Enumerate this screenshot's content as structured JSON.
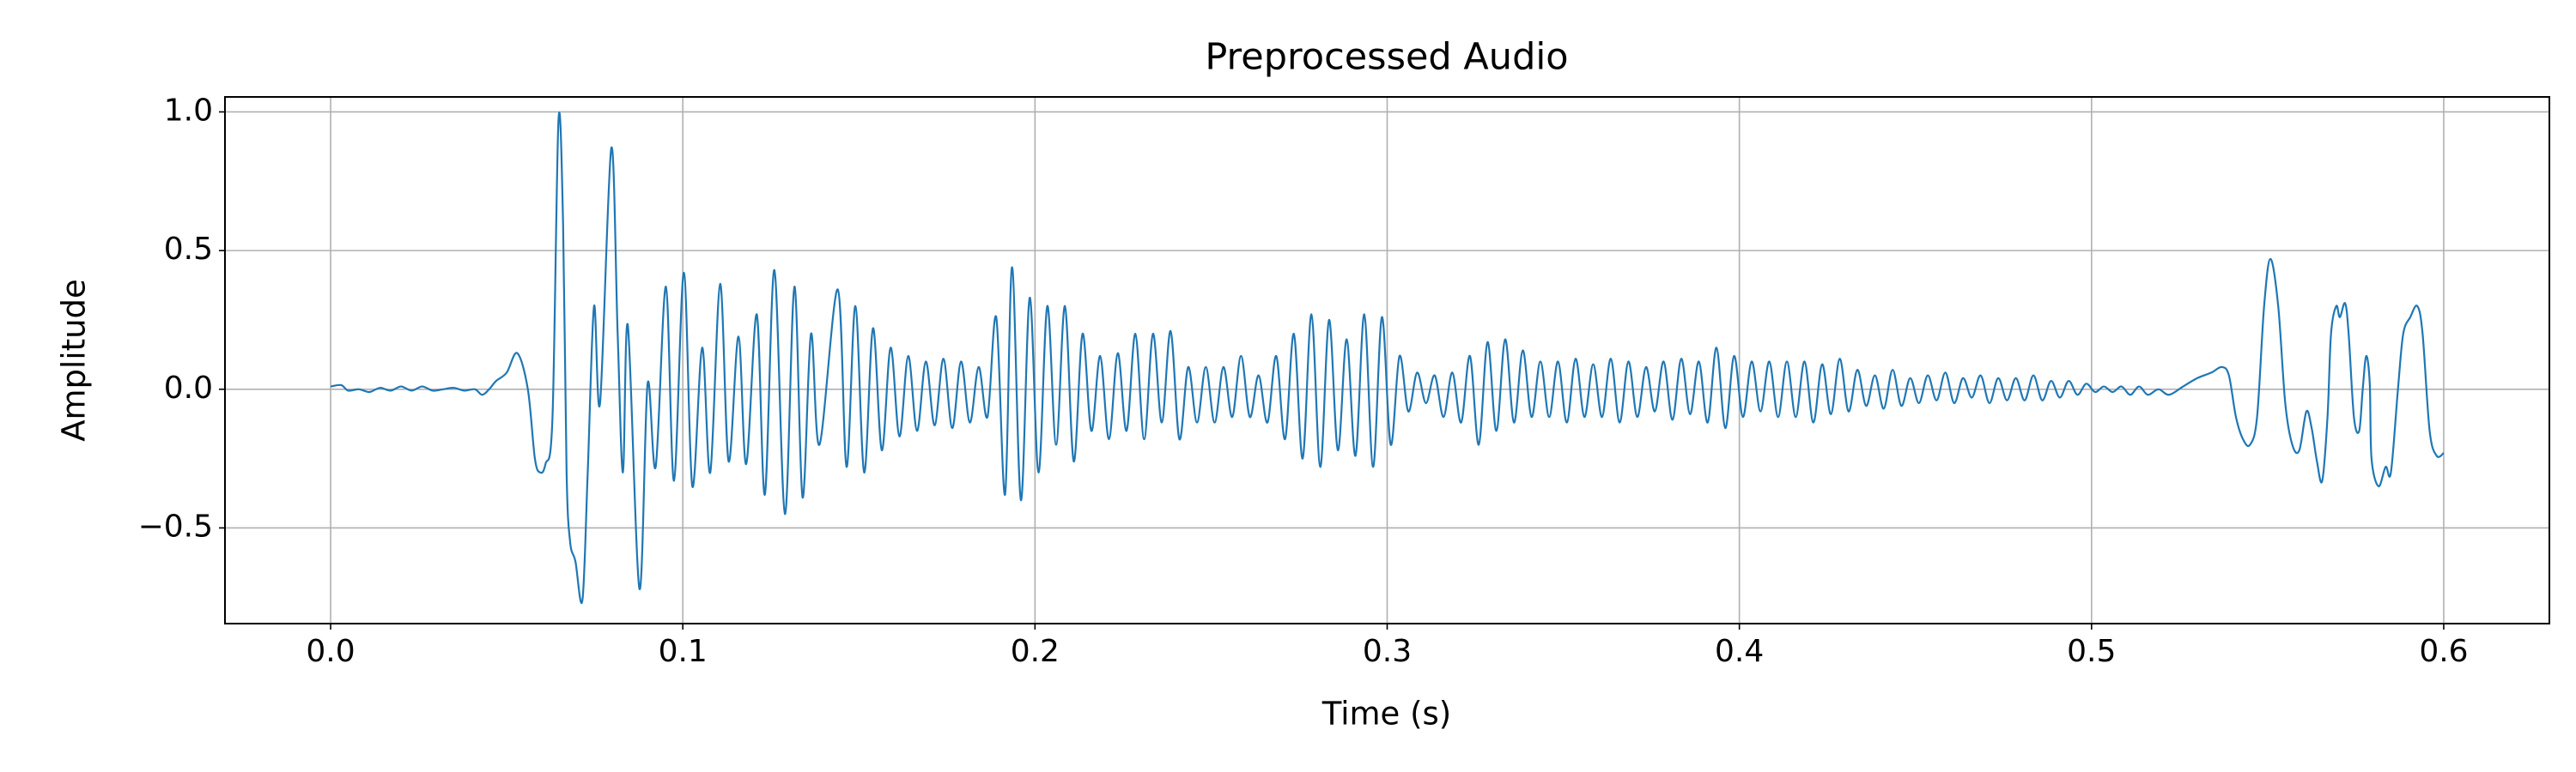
{
  "chart_data": {
    "type": "line",
    "title": "Preprocessed Audio",
    "x_label": "Time (s)",
    "y_label": "Amplitude",
    "xlim": [
      -0.03,
      0.63
    ],
    "ylim": [
      -0.845,
      1.054
    ],
    "grid": true,
    "xticks": [
      {
        "value": 0,
        "label": "0.0"
      },
      0.1,
      0.2,
      0.3,
      0.4,
      0.5,
      0.6
    ],
    "yticks": [
      {
        "value": -0.5,
        "label": "−0.5"
      },
      {
        "value": 0,
        "label": "0.0"
      },
      0.5,
      {
        "value": 1,
        "label": "1.0"
      }
    ],
    "series": [
      {
        "color": "#1f77b4",
        "x": [
          0,
          0.003,
          0.005,
          0.008,
          0.011,
          0.014,
          0.017,
          0.02,
          0.023,
          0.026,
          0.029,
          0.032,
          0.035,
          0.038,
          0.041,
          0.043,
          0.045,
          0.047,
          0.05,
          0.053,
          0.056,
          0.058,
          0.0595,
          0.061,
          0.063,
          0.0647,
          0.066,
          0.067,
          0.068,
          0.0695,
          0.0715,
          0.073,
          0.0748,
          0.0765,
          0.0797,
          0.0815,
          0.083,
          0.0844,
          0.0877,
          0.09,
          0.0923,
          0.0952,
          0.0975,
          0.1003,
          0.1027,
          0.1055,
          0.1078,
          0.1106,
          0.113,
          0.1158,
          0.118,
          0.121,
          0.1233,
          0.126,
          0.129,
          0.1317,
          0.134,
          0.1364,
          0.1388,
          0.144,
          0.1465,
          0.149,
          0.1515,
          0.154,
          0.1565,
          0.159,
          0.1615,
          0.164,
          0.1665,
          0.169,
          0.1715,
          0.174,
          0.1765,
          0.179,
          0.1815,
          0.184,
          0.1865,
          0.189,
          0.1915,
          0.1935,
          0.196,
          0.1985,
          0.201,
          0.2035,
          0.206,
          0.2085,
          0.211,
          0.2135,
          0.216,
          0.2185,
          0.221,
          0.2235,
          0.226,
          0.2285,
          0.231,
          0.2335,
          0.236,
          0.2385,
          0.241,
          0.2435,
          0.246,
          0.2485,
          0.251,
          0.2535,
          0.256,
          0.2585,
          0.261,
          0.2635,
          0.266,
          0.2685,
          0.271,
          0.2735,
          0.276,
          0.2785,
          0.281,
          0.2835,
          0.286,
          0.2885,
          0.291,
          0.2935,
          0.296,
          0.2985,
          0.301,
          0.3035,
          0.306,
          0.3085,
          0.311,
          0.3135,
          0.316,
          0.3185,
          0.321,
          0.3235,
          0.326,
          0.3285,
          0.331,
          0.3335,
          0.336,
          0.3385,
          0.341,
          0.3435,
          0.346,
          0.3485,
          0.351,
          0.3535,
          0.356,
          0.3585,
          0.361,
          0.3635,
          0.366,
          0.3685,
          0.371,
          0.3735,
          0.376,
          0.3785,
          0.381,
          0.3835,
          0.386,
          0.3885,
          0.391,
          0.3935,
          0.396,
          0.3985,
          0.401,
          0.4035,
          0.406,
          0.4085,
          0.411,
          0.4135,
          0.416,
          0.4185,
          0.421,
          0.4235,
          0.426,
          0.4285,
          0.431,
          0.4335,
          0.436,
          0.4385,
          0.441,
          0.4435,
          0.446,
          0.4485,
          0.451,
          0.4535,
          0.456,
          0.4585,
          0.461,
          0.4635,
          0.466,
          0.4685,
          0.471,
          0.4735,
          0.476,
          0.4785,
          0.481,
          0.4835,
          0.486,
          0.4885,
          0.491,
          0.4935,
          0.496,
          0.4985,
          0.501,
          0.5035,
          0.506,
          0.5085,
          0.511,
          0.5135,
          0.516,
          0.519,
          0.522,
          0.526,
          0.53,
          0.534,
          0.537,
          0.539,
          0.541,
          0.543,
          0.545,
          0.547,
          0.549,
          0.5508,
          0.553,
          0.555,
          0.557,
          0.559,
          0.561,
          0.5625,
          0.564,
          0.5655,
          0.567,
          0.568,
          0.5695,
          0.5705,
          0.572,
          0.573,
          0.5745,
          0.576,
          0.577,
          0.578,
          0.579,
          0.5795,
          0.5815,
          0.5835,
          0.585,
          0.587,
          0.5885,
          0.5905,
          0.5925,
          0.594,
          0.596,
          0.598,
          0.6
        ],
        "values": [
          0.01,
          0.015,
          -0.005,
          0,
          -0.01,
          0.005,
          -0.005,
          0.01,
          -0.005,
          0.01,
          -0.005,
          0,
          0.005,
          -0.005,
          0,
          -0.02,
          0,
          0.03,
          0.06,
          0.13,
          0,
          -0.25,
          -0.3,
          -0.27,
          -0.1,
          0.97,
          0.6,
          -0.3,
          -0.55,
          -0.62,
          -0.76,
          -0.3,
          0.3,
          -0.05,
          0.87,
          0.2,
          -0.3,
          0.23,
          -0.72,
          0.02,
          -0.28,
          0.37,
          -0.33,
          0.42,
          -0.35,
          0.15,
          -0.3,
          0.38,
          -0.26,
          0.19,
          -0.27,
          0.27,
          -0.38,
          0.43,
          -0.45,
          0.37,
          -0.39,
          0.2,
          -0.2,
          0.36,
          -0.28,
          0.3,
          -0.3,
          0.22,
          -0.22,
          0.15,
          -0.17,
          0.12,
          -0.15,
          0.1,
          -0.13,
          0.11,
          -0.14,
          0.1,
          -0.12,
          0.08,
          -0.1,
          0.26,
          -0.38,
          0.44,
          -0.4,
          0.33,
          -0.3,
          0.3,
          -0.2,
          0.3,
          -0.26,
          0.2,
          -0.15,
          0.12,
          -0.18,
          0.13,
          -0.15,
          0.2,
          -0.18,
          0.2,
          -0.12,
          0.21,
          -0.18,
          0.08,
          -0.12,
          0.08,
          -0.12,
          0.08,
          -0.1,
          0.12,
          -0.1,
          0.05,
          -0.12,
          0.12,
          -0.18,
          0.2,
          -0.25,
          0.27,
          -0.28,
          0.25,
          -0.22,
          0.18,
          -0.24,
          0.27,
          -0.28,
          0.26,
          -0.2,
          0.12,
          -0.08,
          0.06,
          -0.05,
          0.05,
          -0.1,
          0.06,
          -0.12,
          0.12,
          -0.2,
          0.17,
          -0.15,
          0.18,
          -0.12,
          0.14,
          -0.1,
          0.1,
          -0.1,
          0.1,
          -0.12,
          0.11,
          -0.1,
          0.09,
          -0.1,
          0.11,
          -0.12,
          0.1,
          -0.1,
          0.08,
          -0.08,
          0.1,
          -0.11,
          0.11,
          -0.09,
          0.1,
          -0.12,
          0.15,
          -0.14,
          0.12,
          -0.1,
          0.1,
          -0.08,
          0.1,
          -0.1,
          0.1,
          -0.1,
          0.1,
          -0.12,
          0.09,
          -0.09,
          0.11,
          -0.08,
          0.07,
          -0.06,
          0.05,
          -0.07,
          0.07,
          -0.06,
          0.04,
          -0.05,
          0.05,
          -0.04,
          0.06,
          -0.05,
          0.04,
          -0.03,
          0.05,
          -0.05,
          0.04,
          -0.04,
          0.04,
          -0.04,
          0.05,
          -0.04,
          0.03,
          -0.03,
          0.03,
          -0.02,
          0.02,
          -0.01,
          0.01,
          -0.01,
          0.01,
          -0.02,
          0.01,
          -0.02,
          0,
          -0.02,
          0.01,
          0.04,
          0.06,
          0.08,
          0.05,
          -0.1,
          -0.18,
          -0.2,
          -0.1,
          0.3,
          0.47,
          0.3,
          -0.05,
          -0.2,
          -0.22,
          -0.08,
          -0.14,
          -0.26,
          -0.33,
          -0.1,
          0.2,
          0.3,
          0.26,
          0.31,
          0.2,
          -0.1,
          -0.15,
          0,
          0.12,
          0.02,
          -0.25,
          -0.35,
          -0.28,
          -0.3,
          0,
          0.2,
          0.26,
          0.3,
          0.2,
          -0.15,
          -0.24,
          -0.23
        ]
      }
    ]
  }
}
